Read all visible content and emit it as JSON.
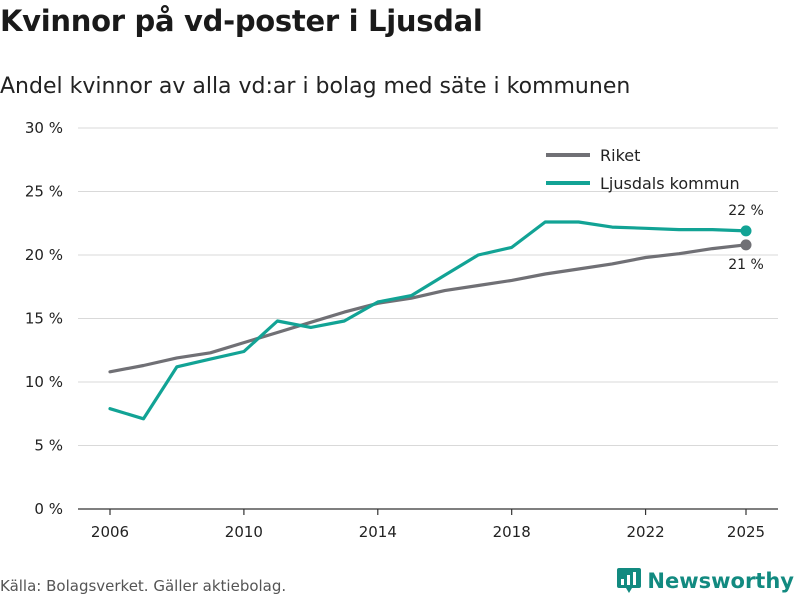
{
  "header": {
    "title": "Kvinnor på vd-poster i Ljusdal",
    "subtitle": "Andel kvinnor av alla vd:ar i bolag med säte i kommunen"
  },
  "footer": {
    "source": "Källa: Bolagsverket. Gäller aktiebolag.",
    "brand": "Newsworthy",
    "brand_color": "#128a80"
  },
  "chart_data": {
    "type": "line",
    "title": "Kvinnor på vd-poster i Ljusdal",
    "subtitle": "Andel kvinnor av alla vd:ar i bolag med säte i kommunen",
    "xlabel": "",
    "ylabel": "",
    "xlim": [
      2006,
      2025
    ],
    "ylim": [
      0,
      30
    ],
    "x_ticks": [
      2006,
      2010,
      2014,
      2018,
      2022,
      2025
    ],
    "x_tick_labels": [
      "2006",
      "2010",
      "2014",
      "2018",
      "2022",
      "2025"
    ],
    "y_ticks": [
      0,
      5,
      10,
      15,
      20,
      25,
      30
    ],
    "y_tick_labels": [
      "0 %",
      "5 %",
      "10 %",
      "15 %",
      "20 %",
      "25 %",
      "30 %"
    ],
    "grid": true,
    "legend_position": "top-right",
    "x": [
      2006,
      2007,
      2008,
      2009,
      2010,
      2011,
      2012,
      2013,
      2014,
      2015,
      2016,
      2017,
      2018,
      2019,
      2020,
      2021,
      2022,
      2023,
      2024,
      2025
    ],
    "series": [
      {
        "name": "Riket",
        "color": "#707075",
        "values": [
          10.8,
          11.3,
          11.9,
          12.3,
          13.1,
          13.9,
          14.7,
          15.5,
          16.2,
          16.6,
          17.2,
          17.6,
          18.0,
          18.5,
          18.9,
          19.3,
          19.8,
          20.1,
          20.5,
          20.8
        ],
        "end_label": "21 %"
      },
      {
        "name": "Ljusdals kommun",
        "color": "#12a395",
        "values": [
          7.9,
          7.1,
          11.2,
          11.8,
          12.4,
          14.8,
          14.3,
          14.8,
          16.3,
          16.8,
          18.4,
          20.0,
          20.6,
          22.6,
          22.6,
          22.2,
          22.1,
          22.0,
          22.0,
          21.9
        ],
        "end_label": "22 %"
      }
    ]
  }
}
